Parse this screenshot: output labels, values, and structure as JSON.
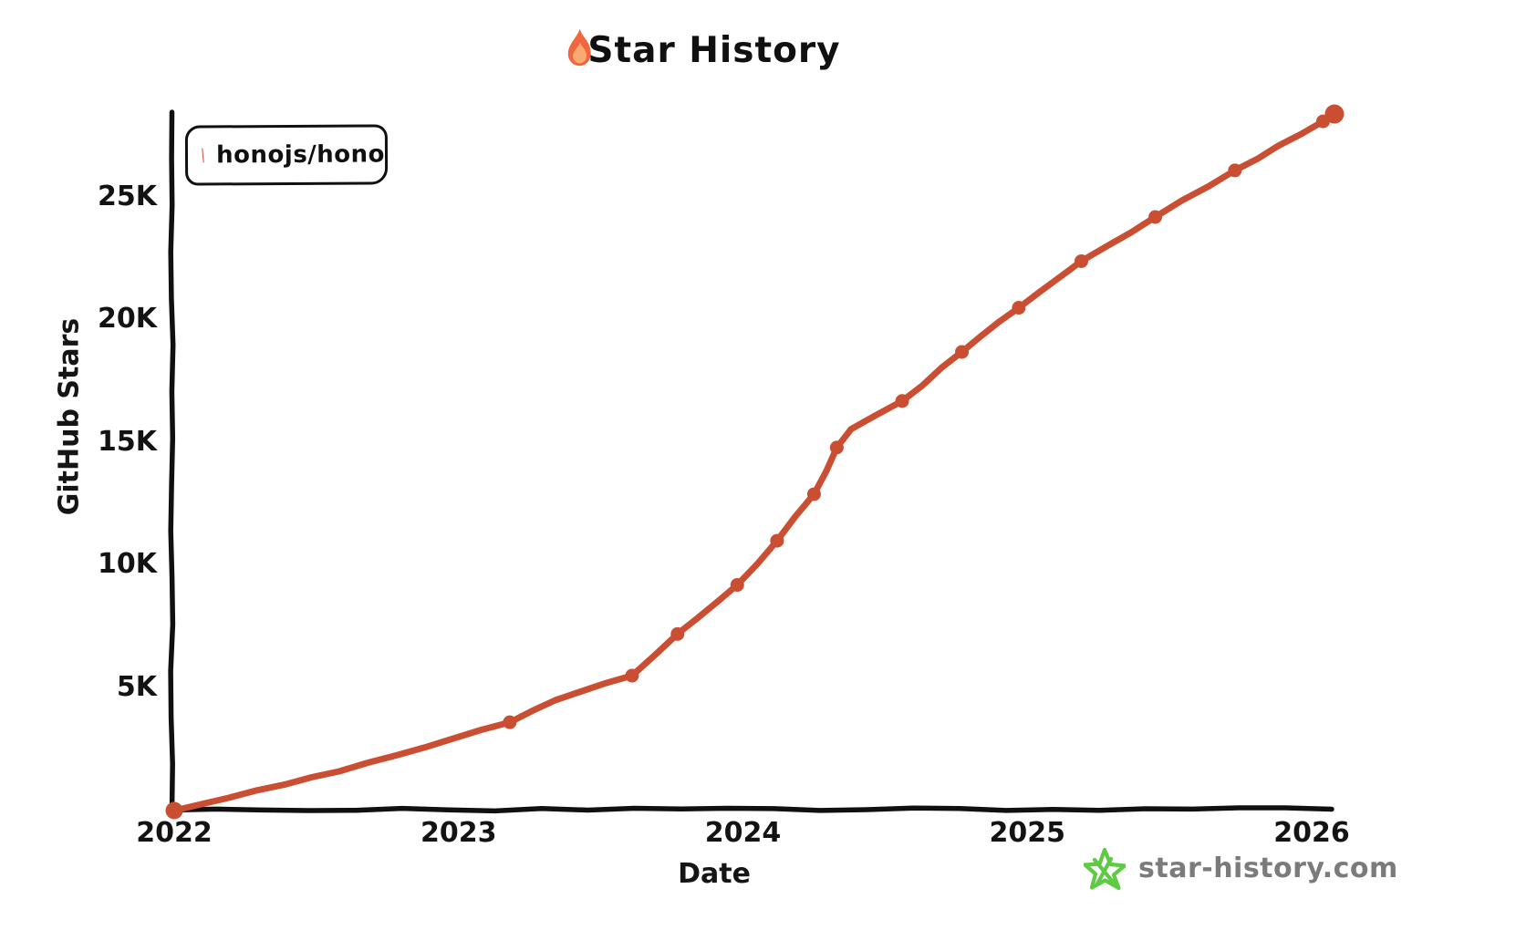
{
  "title": {
    "text": "Star History",
    "icon": "flame-icon"
  },
  "legend": {
    "items": [
      {
        "label": "honojs/hono",
        "color": "#ca4e32"
      }
    ]
  },
  "axes": {
    "xlabel": "Date",
    "ylabel": "GitHub Stars"
  },
  "watermark": {
    "text": "star-history.com",
    "icon": "star-icon",
    "text_color": "#7b7b7b",
    "star_color": "#5fca43"
  },
  "colors": {
    "series": "#ca4e32",
    "axis": "#101010",
    "flame_outer": "#f1663f",
    "flame_inner": "#f9a974"
  },
  "chart_data": {
    "type": "line",
    "title": "Star History",
    "xlabel": "Date",
    "ylabel": "GitHub Stars",
    "x_ticks": [
      "2022",
      "2023",
      "2024",
      "2025",
      "2026"
    ],
    "y_ticks": [
      "5K",
      "10K",
      "15K",
      "20K",
      "25K"
    ],
    "y_tick_values": [
      5000,
      10000,
      15000,
      20000,
      25000
    ],
    "x_range_years": [
      2022,
      2026.16
    ],
    "ylim": [
      0,
      28800
    ],
    "grid": false,
    "legend_position": "top-left",
    "series": [
      {
        "name": "honojs/hono",
        "color": "#ca4e32",
        "points": [
          {
            "t": 2022.0,
            "date": "2022-01",
            "stars": 0
          },
          {
            "t": 2023.18,
            "date": "2023-03",
            "stars": 3600
          },
          {
            "t": 2023.61,
            "date": "2023-08",
            "stars": 5500
          },
          {
            "t": 2023.77,
            "date": "2023-10",
            "stars": 7200
          },
          {
            "t": 2023.98,
            "date": "2023-12",
            "stars": 9200
          },
          {
            "t": 2024.12,
            "date": "2024-02",
            "stars": 11000
          },
          {
            "t": 2024.25,
            "date": "2024-04",
            "stars": 12900
          },
          {
            "t": 2024.33,
            "date": "2024-05",
            "stars": 14800
          },
          {
            "t": 2024.56,
            "date": "2024-07",
            "stars": 16700
          },
          {
            "t": 2024.77,
            "date": "2024-10",
            "stars": 18700
          },
          {
            "t": 2024.97,
            "date": "2024-12",
            "stars": 20500
          },
          {
            "t": 2025.19,
            "date": "2025-03",
            "stars": 22400
          },
          {
            "t": 2025.45,
            "date": "2025-06",
            "stars": 24200
          },
          {
            "t": 2025.73,
            "date": "2025-10",
            "stars": 26100
          },
          {
            "t": 2026.04,
            "date": "2026-01",
            "stars": 28100
          },
          {
            "t": 2026.08,
            "date": "2026-02",
            "stars": 28400
          }
        ],
        "waypoints": [
          {
            "t": 2022.58,
            "stars": 1600
          },
          {
            "t": 2023.34,
            "stars": 4500
          },
          {
            "t": 2024.38,
            "stars": 15550
          }
        ]
      }
    ]
  }
}
